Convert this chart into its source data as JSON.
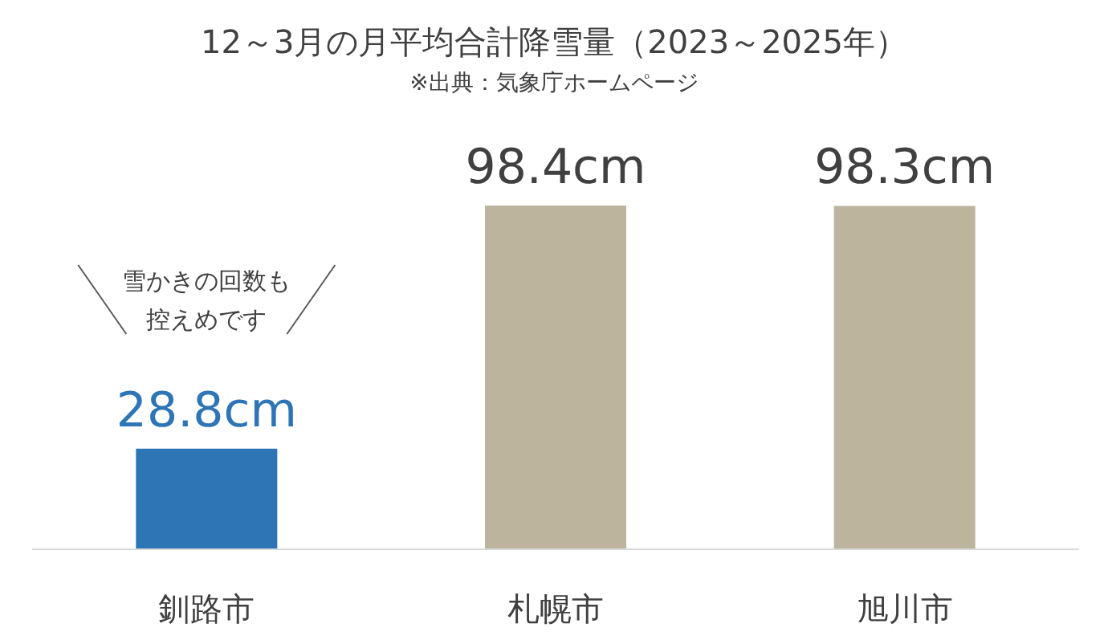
{
  "chart_data": {
    "type": "bar",
    "title": "12～3月の月平均合計降雪量（2023～2025年）",
    "subtitle": "※出典：気象庁ホームページ",
    "categories": [
      "釧路市",
      "札幌市",
      "旭川市"
    ],
    "values": [
      28.8,
      98.4,
      98.3
    ],
    "colors": [
      "#2e75b6",
      "#bcb49c",
      "#bcb49c"
    ],
    "value_labels": [
      "28.8cm",
      "98.4cm",
      "98.3cm"
    ],
    "annotations": [
      "雪かきの回数も控えめです"
    ]
  }
}
